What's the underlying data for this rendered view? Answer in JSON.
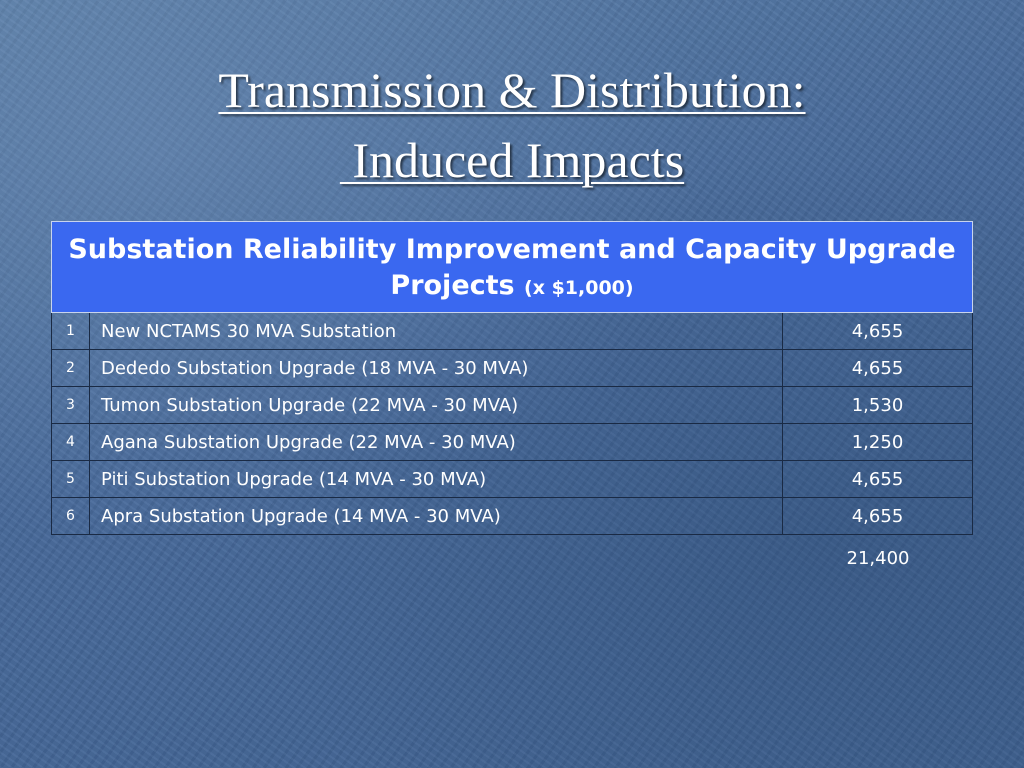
{
  "slide": {
    "title_line1": "Transmission & Distribution:",
    "title_line2": " Induced Impacts"
  },
  "table": {
    "header": "Substation Reliability Improvement and Capacity Upgrade Projects",
    "header_unit": "(x $1,000)",
    "rows": [
      {
        "num": "1",
        "name": "New NCTAMS 30 MVA Substation",
        "value": "4,655"
      },
      {
        "num": "2",
        "name": "Dededo Substation Upgrade (18 MVA - 30 MVA)",
        "value": "4,655"
      },
      {
        "num": "3",
        "name": "Tumon Substation Upgrade (22 MVA - 30 MVA)",
        "value": "1,530"
      },
      {
        "num": "4",
        "name": "Agana Substation Upgrade (22 MVA - 30 MVA)",
        "value": "1,250"
      },
      {
        "num": "5",
        "name": "Piti Substation Upgrade (14 MVA - 30 MVA)",
        "value": "4,655"
      },
      {
        "num": "6",
        "name": "Apra Substation Upgrade (14 MVA - 30 MVA)",
        "value": "4,655"
      }
    ],
    "total": "21,400"
  },
  "colors": {
    "background": "#4a6c96",
    "header_fill": "#3a68f0",
    "text": "#ffffff"
  }
}
